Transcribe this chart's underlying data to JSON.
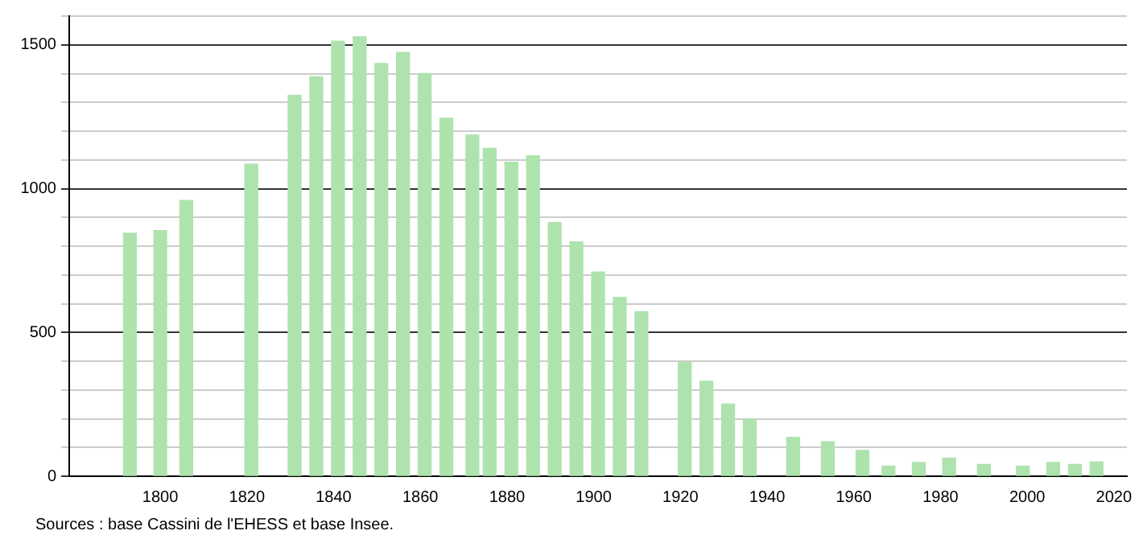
{
  "chart_data": {
    "type": "bar",
    "x": [
      1793,
      1800,
      1806,
      1821,
      1831,
      1836,
      1841,
      1846,
      1851,
      1856,
      1861,
      1866,
      1872,
      1876,
      1881,
      1886,
      1891,
      1896,
      1901,
      1906,
      1911,
      1921,
      1926,
      1931,
      1936,
      1946,
      1954,
      1962,
      1968,
      1975,
      1982,
      1990,
      1999,
      2006,
      2011,
      2016
    ],
    "values": [
      845,
      854,
      959,
      1085,
      1325,
      1389,
      1513,
      1528,
      1435,
      1474,
      1400,
      1245,
      1186,
      1140,
      1092,
      1114,
      882,
      815,
      710,
      622,
      572,
      397,
      330,
      251,
      199,
      135,
      120,
      90,
      35,
      48,
      63,
      41,
      35,
      48,
      41,
      50
    ],
    "color": "#aee3ae",
    "xlim": [
      1779,
      2023
    ],
    "xticks": [
      1800,
      1820,
      1840,
      1860,
      1880,
      1900,
      1920,
      1940,
      1960,
      1980,
      2000,
      2020
    ],
    "ylim": [
      0,
      1600
    ],
    "yticks": [
      0,
      {
        "value": 100,
        "label": null
      },
      {
        "value": 200,
        "label": null
      },
      {
        "value": 300,
        "label": null
      },
      {
        "value": 400,
        "label": null
      },
      500,
      {
        "value": 600,
        "label": null
      },
      {
        "value": 700,
        "label": null
      },
      {
        "value": 800,
        "label": null
      },
      {
        "value": 900,
        "label": null
      },
      1000,
      {
        "value": 1100,
        "label": null
      },
      {
        "value": 1200,
        "label": null
      },
      {
        "value": 1300,
        "label": null
      },
      {
        "value": 1400,
        "label": null
      },
      1500,
      {
        "value": 1600,
        "label": null
      }
    ],
    "grid": "y",
    "annotations": [
      "Sources : base Cassini de l'EHESS et base Insee."
    ]
  }
}
